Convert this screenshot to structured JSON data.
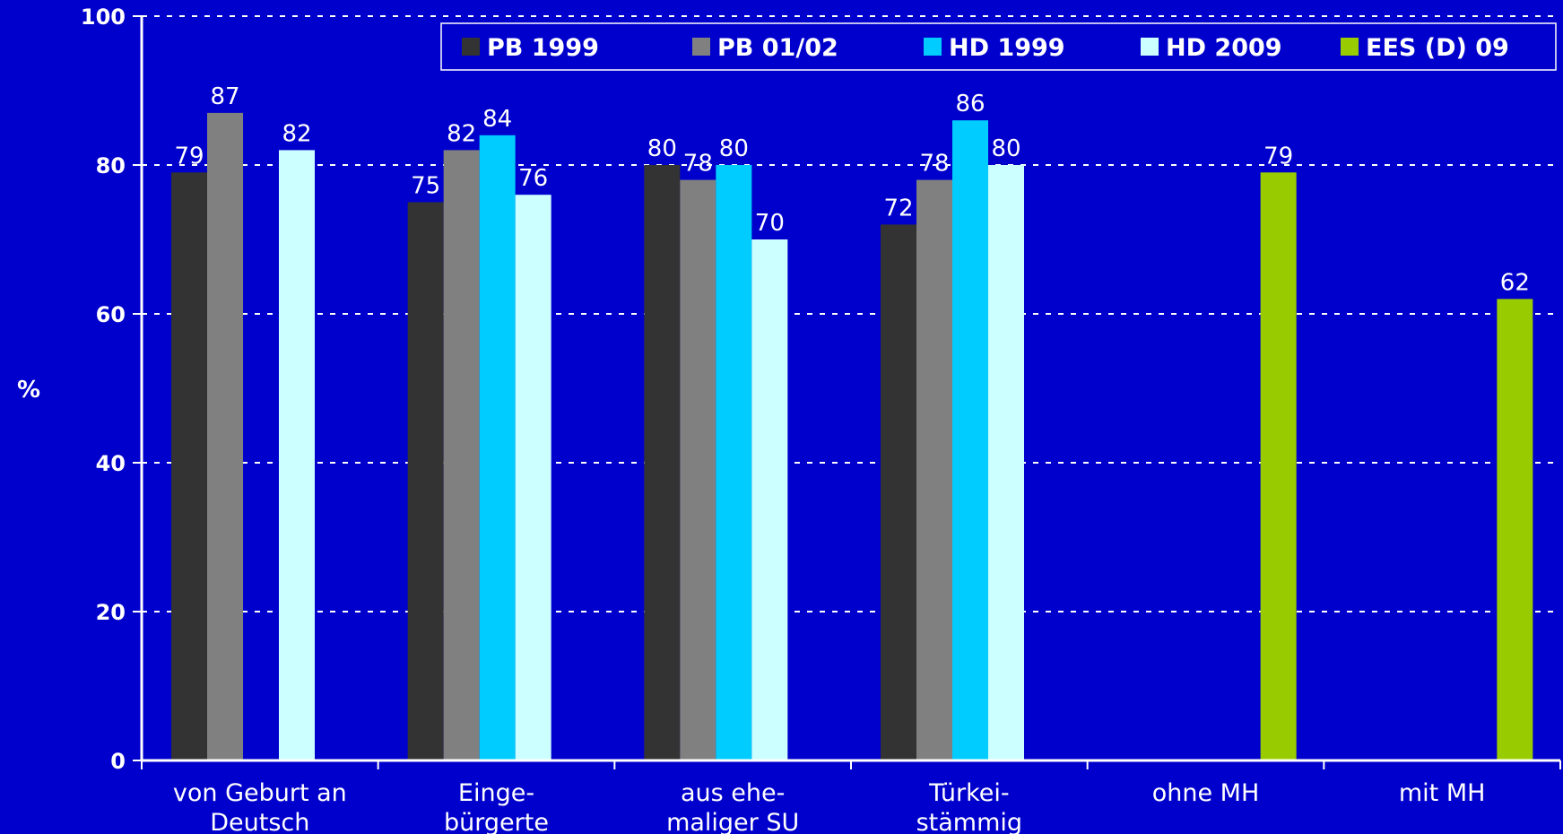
{
  "chart_data": {
    "type": "bar",
    "ylabel": "%",
    "ylim": [
      0,
      100
    ],
    "yticks": [
      0,
      20,
      40,
      60,
      80,
      100
    ],
    "grid": true,
    "legend_position": "top-right",
    "categories": [
      [
        "von Geburt an",
        "Deutsch"
      ],
      [
        "Einge-",
        "bürgerte"
      ],
      [
        "aus ehe-",
        "maliger SU"
      ],
      [
        "Türkei-",
        "stämmig"
      ],
      [
        "ohne MH"
      ],
      [
        "mit MH"
      ]
    ],
    "series": [
      {
        "name": "PB 1999",
        "color": "#333333",
        "values": [
          79,
          75,
          80,
          72,
          null,
          null
        ]
      },
      {
        "name": "PB 01/02",
        "color": "#808080",
        "values": [
          87,
          82,
          78,
          78,
          null,
          null
        ]
      },
      {
        "name": "HD 1999",
        "color": "#00CCFF",
        "values": [
          null,
          84,
          80,
          86,
          null,
          null
        ]
      },
      {
        "name": "HD 2009",
        "color": "#CCFFFF",
        "values": [
          82,
          76,
          70,
          80,
          null,
          null
        ]
      },
      {
        "name": "EES (D) 09",
        "color": "#99CC00",
        "values": [
          null,
          null,
          null,
          null,
          79,
          62
        ]
      }
    ]
  }
}
